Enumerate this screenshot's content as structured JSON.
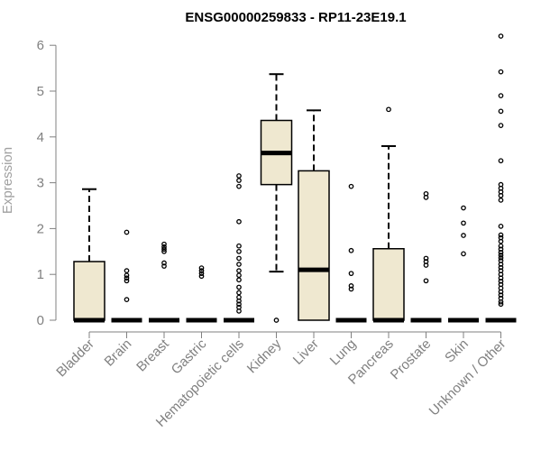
{
  "chart_data": {
    "type": "boxplot",
    "title": "ENSG00000259833 - RP11-23E19.1",
    "xlabel": "",
    "ylabel": "Expression",
    "ylim": [
      0,
      6.2
    ],
    "yticks": [
      0,
      1,
      2,
      3,
      4,
      5,
      6
    ],
    "grid": false,
    "legend": "none",
    "colors": {
      "box_fill": "#efe8d0",
      "stroke": "#000000",
      "axis": "#808080"
    },
    "categories": [
      "Bladder",
      "Brain",
      "Breast",
      "Gastric",
      "Hematopoietic cells",
      "Kidney",
      "Liver",
      "Lung",
      "Pancreas",
      "Prostate",
      "Skin",
      "Unknown / Other"
    ],
    "boxes": [
      {
        "category": "Bladder",
        "q1": 0,
        "median": 0,
        "q3": 1.28,
        "whisker_low": 0,
        "whisker_high": 2.86,
        "outliers": []
      },
      {
        "category": "Brain",
        "q1": 0,
        "median": 0,
        "q3": 0,
        "whisker_low": 0,
        "whisker_high": 0,
        "outliers": [
          1.92,
          1.08,
          0.98,
          0.92,
          0.86,
          0.45
        ]
      },
      {
        "category": "Breast",
        "q1": 0,
        "median": 0,
        "q3": 0,
        "whisker_low": 0,
        "whisker_high": 0,
        "outliers": [
          1.66,
          1.6,
          1.55,
          1.5,
          1.25,
          1.18
        ]
      },
      {
        "category": "Gastric",
        "q1": 0,
        "median": 0,
        "q3": 0,
        "whisker_low": 0,
        "whisker_high": 0,
        "outliers": [
          1.14,
          1.08,
          1.02,
          0.96
        ]
      },
      {
        "category": "Hematopoietic cells",
        "q1": 0,
        "median": 0,
        "q3": 0,
        "whisker_low": 0,
        "whisker_high": 0,
        "outliers": [
          3.15,
          3.05,
          2.92,
          2.15,
          1.62,
          1.5,
          1.35,
          1.22,
          1.08,
          0.98,
          0.88,
          0.72,
          0.6,
          0.5,
          0.42,
          0.35,
          0.28,
          0.2
        ]
      },
      {
        "category": "Kidney",
        "q1": 2.96,
        "median": 3.65,
        "q3": 4.36,
        "whisker_low": 1.06,
        "whisker_high": 5.37,
        "outliers": [
          0
        ]
      },
      {
        "category": "Liver",
        "q1": 0,
        "median": 1.1,
        "q3": 3.26,
        "whisker_low": 0,
        "whisker_high": 4.58,
        "outliers": []
      },
      {
        "category": "Lung",
        "q1": 0,
        "median": 0,
        "q3": 0,
        "whisker_low": 0,
        "whisker_high": 0,
        "outliers": [
          2.92,
          1.52,
          1.02,
          0.75,
          0.68
        ]
      },
      {
        "category": "Pancreas",
        "q1": 0,
        "median": 0,
        "q3": 1.56,
        "whisker_low": 0,
        "whisker_high": 3.8,
        "outliers": [
          4.6
        ]
      },
      {
        "category": "Prostate",
        "q1": 0,
        "median": 0,
        "q3": 0,
        "whisker_low": 0,
        "whisker_high": 0,
        "outliers": [
          2.76,
          2.68,
          1.35,
          1.28,
          1.2,
          0.86
        ]
      },
      {
        "category": "Skin",
        "q1": 0,
        "median": 0,
        "q3": 0,
        "whisker_low": 0,
        "whisker_high": 0,
        "outliers": [
          2.45,
          2.12,
          1.85,
          1.45
        ]
      },
      {
        "category": "Unknown / Other",
        "q1": 0,
        "median": 0,
        "q3": 0,
        "whisker_low": 0,
        "whisker_high": 0,
        "outliers": [
          6.2,
          5.42,
          4.9,
          4.56,
          4.25,
          3.48,
          2.96,
          2.88,
          2.8,
          2.72,
          2.62,
          2.05,
          1.86,
          1.8,
          1.72,
          1.62,
          1.55,
          1.48,
          1.42,
          1.36,
          1.3,
          1.22,
          1.15,
          1.08,
          1.0,
          0.92,
          0.85,
          0.78,
          0.7,
          0.62,
          0.55,
          0.48,
          0.4,
          0.35
        ]
      }
    ]
  }
}
